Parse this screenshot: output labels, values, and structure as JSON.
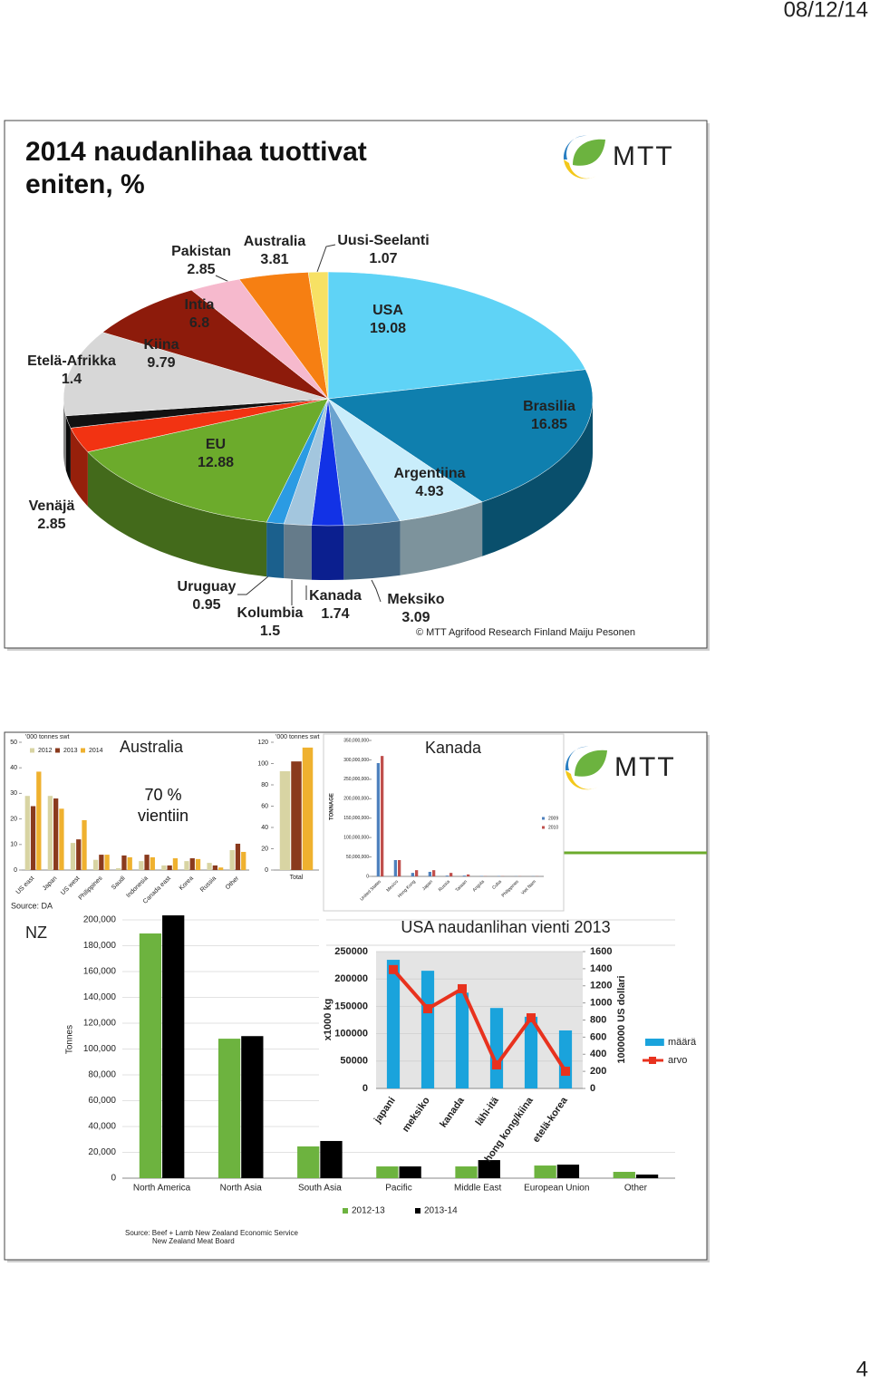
{
  "header": {
    "date": "08/12/14",
    "logo": "MTT"
  },
  "footer": {
    "page": "4"
  },
  "chart_data": [
    {
      "type": "pie",
      "title": "2014 naudanlihaa tuottivat eniten, %",
      "categories": [
        "USA",
        "Brasilia",
        "Argentiina",
        "Meksiko",
        "Kanada",
        "Kolumbia",
        "Uruguay",
        "EU",
        "Venäjä",
        "Etelä-Afrikka",
        "Kiina",
        "Intia",
        "Pakistan",
        "Australia",
        "Uusi-Seelanti"
      ],
      "values": [
        19.08,
        16.85,
        4.93,
        3.09,
        1.74,
        1.5,
        0.95,
        12.88,
        2.85,
        1.4,
        9.79,
        6.8,
        2.85,
        3.81,
        1.07
      ],
      "colors": [
        "#5fd3f6",
        "#0f7fae",
        "#c9edfb",
        "#6aa3cf",
        "#1232e6",
        "#a3c6de",
        "#2b9be3",
        "#6cab2c",
        "#f23312",
        "#111111",
        "#d7d7d7",
        "#8d1b0b",
        "#f6b9cd",
        "#f67f12",
        "#f7e164"
      ],
      "source": "© MTT Agrifood Research Finland Maiju Pesonen"
    },
    {
      "type": "bar",
      "title": "Australia",
      "annotation": "70 % vientiin",
      "y_label": "'000 tonnes swt",
      "source": "Source: DA",
      "categories": [
        "US east",
        "Japan",
        "US west",
        "Philippines",
        "Saudi",
        "Indonesia",
        "Canada east",
        "Korea",
        "Russia",
        "Other"
      ],
      "series": [
        {
          "name": "2012",
          "color": "#d8d4a3",
          "values": [
            29,
            29,
            10.6,
            4,
            0.7,
            3.5,
            1.8,
            3.5,
            2.8,
            7.8
          ]
        },
        {
          "name": "2013",
          "color": "#8a3a1d",
          "values": [
            25,
            28,
            12,
            6,
            5.7,
            6,
            1.8,
            4.6,
            1.8,
            10.3
          ]
        },
        {
          "name": "2014",
          "color": "#efb12f",
          "values": [
            38.5,
            24,
            19.5,
            6,
            5,
            5,
            4.6,
            4.3,
            1,
            7.1
          ]
        }
      ],
      "ylim": [
        0,
        50
      ],
      "yticks": [
        0,
        10,
        20,
        30,
        40,
        50
      ]
    },
    {
      "type": "bar",
      "y_label": "'000 tonnes swt",
      "categories": [
        "Total"
      ],
      "series": [
        {
          "color": "#d8d4a3",
          "values": [
            92.8
          ]
        },
        {
          "color": "#8a3a1d",
          "values": [
            102
          ]
        },
        {
          "color": "#efb12f",
          "values": [
            115
          ]
        }
      ],
      "ylim": [
        0,
        120
      ],
      "yticks": [
        0,
        20,
        40,
        60,
        80,
        100,
        120
      ]
    },
    {
      "type": "bar",
      "title": "Kanada",
      "y_label": "TONNAGE",
      "categories": [
        "United States",
        "Mexico",
        "Hong Kong",
        "Japan",
        "Russia",
        "Taiwan",
        "Angola",
        "Cuba",
        "Philippines",
        "Viet Nam"
      ],
      "series": [
        {
          "name": "2009",
          "color": "#4f81bd",
          "values": [
            291700000,
            42000000,
            9000000,
            11700000,
            2000000,
            2000000,
            1000000,
            1000000,
            500000,
            500000
          ]
        },
        {
          "name": "2010",
          "color": "#c0504d",
          "values": [
            310000000,
            42000000,
            16000000,
            16000000,
            9000000,
            5000000,
            500000,
            500000,
            500000,
            500000
          ]
        }
      ],
      "ylim": [
        0,
        350000000
      ],
      "yticks": [
        0,
        {
          "value": 50000000,
          "label": "50,000,000"
        },
        {
          "value": 100000000,
          "label": "100,000,000"
        },
        {
          "value": 150000000,
          "label": "150,000,000"
        },
        {
          "value": 200000000,
          "label": "200,000,000"
        },
        {
          "value": 250000000,
          "label": "250,000,000"
        },
        {
          "value": 300000000,
          "label": "300,000,000"
        },
        {
          "value": 350000000,
          "label": "350,000,000"
        }
      ]
    },
    {
      "type": "bar",
      "title": "NZ",
      "y_label": "Tonnes",
      "source": [
        "Source: Beef + Lamb New Zealand Economic Service",
        "New Zealand Meat Board"
      ],
      "categories": [
        "North America",
        "North Asia",
        "South Asia",
        "Pacific",
        "Middle East",
        "European Union",
        "Other"
      ],
      "series": [
        {
          "name": "2012-13",
          "color": "#6db33f",
          "values": [
            189500,
            108000,
            24600,
            9100,
            9100,
            9800,
            4900
          ]
        },
        {
          "name": "2013-14",
          "color": "#000000",
          "values": [
            203500,
            110000,
            28800,
            9100,
            14000,
            10500,
            2800
          ]
        }
      ],
      "ylim": [
        0,
        200000
      ],
      "yticks": [
        0,
        {
          "value": 20000,
          "label": "20,000"
        },
        {
          "value": 40000,
          "label": "40,000"
        },
        {
          "value": 60000,
          "label": "60,000"
        },
        {
          "value": 80000,
          "label": "80,000"
        },
        {
          "value": 100000,
          "label": "100,000"
        },
        {
          "value": 120000,
          "label": "120,000"
        },
        {
          "value": 140000,
          "label": "140,000"
        },
        {
          "value": 160000,
          "label": "160,000"
        },
        {
          "value": 180000,
          "label": "180,000"
        },
        {
          "value": 200000,
          "label": "200,000"
        }
      ],
      "grid": true
    },
    {
      "type": "bar",
      "title": "USA naudanlihan vienti 2013",
      "y_label": "x1000 kg",
      "y2_label": "1000000 US dollari",
      "categories": [
        "japani",
        "meksiko",
        "kanada",
        "lähi-itä",
        "hong kong/kiina",
        "etelä-korea"
      ],
      "series": [
        {
          "name": "määrä",
          "color": "#1aa3dc",
          "values": [
            235000,
            215000,
            175000,
            147000,
            131000,
            106000
          ]
        },
        {
          "name": "arvo",
          "color": "#e8321e",
          "type": "line",
          "axis": "y2",
          "values": [
            1390,
            932,
            1166,
            275,
            826,
            201
          ]
        }
      ],
      "ylim": [
        0,
        250000
      ],
      "yticks": [
        0,
        50000,
        100000,
        150000,
        200000,
        250000
      ],
      "y2lim": [
        0,
        1600
      ],
      "y2ticks": [
        0,
        200,
        400,
        600,
        800,
        1000,
        1200,
        1400,
        1600
      ],
      "grid": true
    }
  ]
}
